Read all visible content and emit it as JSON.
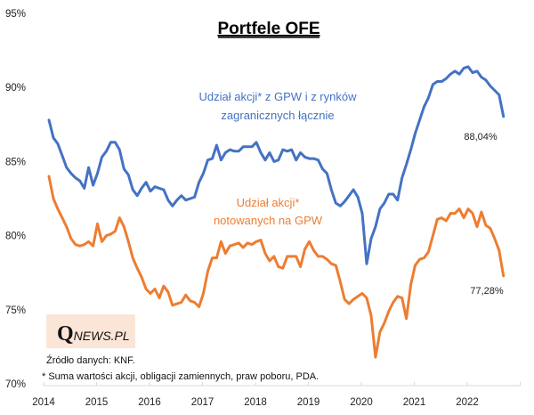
{
  "chart_data": {
    "type": "line",
    "title": "Portfele OFE",
    "xlabel": "",
    "ylabel": "",
    "ylim": [
      70,
      95
    ],
    "y_ticks": [
      "70%",
      "75%",
      "80%",
      "85%",
      "90%",
      "95%"
    ],
    "y_tick_values": [
      70,
      75,
      80,
      85,
      90,
      95
    ],
    "x_ticks": [
      "2014",
      "2015",
      "2016",
      "2017",
      "2018",
      "2019",
      "2020",
      "2021",
      "2022"
    ],
    "x_start": "2014-01",
    "x_end_axis": "2023-01",
    "x_frequency": "monthly",
    "grid": false,
    "series": [
      {
        "name": "Udział akcji* z GPW i z rynków zagranicznych łącznie",
        "color": "#4472C4",
        "annotation_lines": [
          "Udział akcji* z GPW i z rynków",
          "zagranicznych łącznie"
        ],
        "end_label": "88,04%",
        "values": [
          87.8,
          86.6,
          86.2,
          85.4,
          84.6,
          84.2,
          83.9,
          83.7,
          83.2,
          84.6,
          83.4,
          84.2,
          85.3,
          85.7,
          86.3,
          86.3,
          85.8,
          84.5,
          84.1,
          83.1,
          82.7,
          83.2,
          83.6,
          83.0,
          83.3,
          83.2,
          83.1,
          82.4,
          82.0,
          82.4,
          82.7,
          82.4,
          82.5,
          82.6,
          83.6,
          84.2,
          85.1,
          85.2,
          86.1,
          85.1,
          85.6,
          85.8,
          85.7,
          85.7,
          86.0,
          86.0,
          86.0,
          86.3,
          85.6,
          85.1,
          85.6,
          85.0,
          85.1,
          85.8,
          85.7,
          85.8,
          85.1,
          85.6,
          85.3,
          85.2,
          85.2,
          85.1,
          84.5,
          84.2,
          83.1,
          82.2,
          82.0,
          82.3,
          82.7,
          83.1,
          82.6,
          81.5,
          78.1,
          79.8,
          80.6,
          81.8,
          82.2,
          82.8,
          82.8,
          82.4,
          83.9,
          84.8,
          85.8,
          86.9,
          87.8,
          88.7,
          89.3,
          90.2,
          90.4,
          90.4,
          90.6,
          90.9,
          91.1,
          90.9,
          91.3,
          91.4,
          91.0,
          91.1,
          90.7,
          90.5,
          90.1,
          89.8,
          89.5,
          88.04
        ]
      },
      {
        "name": "Udział akcji* notowanych na GPW",
        "color": "#ED7D31",
        "annotation_lines": [
          "Udział akcji*",
          "notowanych  na GPW"
        ],
        "end_label": "77,28%",
        "values": [
          84.0,
          82.5,
          81.8,
          81.2,
          80.6,
          79.8,
          79.4,
          79.3,
          79.4,
          79.6,
          79.3,
          80.8,
          79.6,
          80.0,
          80.1,
          80.3,
          81.2,
          80.6,
          79.6,
          78.5,
          77.8,
          77.2,
          76.4,
          76.1,
          76.4,
          75.8,
          76.6,
          76.2,
          75.3,
          75.4,
          75.5,
          76.0,
          75.6,
          75.5,
          75.2,
          76.1,
          77.6,
          78.5,
          78.5,
          79.6,
          78.8,
          79.3,
          79.4,
          79.5,
          79.2,
          79.5,
          79.4,
          79.6,
          79.7,
          78.8,
          78.3,
          78.6,
          77.9,
          77.8,
          78.6,
          78.6,
          78.6,
          77.9,
          79.1,
          79.6,
          79.0,
          78.6,
          78.6,
          78.4,
          78.1,
          78.0,
          76.9,
          75.7,
          75.4,
          75.7,
          75.9,
          76.1,
          75.8,
          74.6,
          71.8,
          73.5,
          74.1,
          74.9,
          75.5,
          75.9,
          75.8,
          74.4,
          76.7,
          78.0,
          78.4,
          78.5,
          78.9,
          80.0,
          81.1,
          81.2,
          81.0,
          81.5,
          81.5,
          81.8,
          81.2,
          81.8,
          81.5,
          80.6,
          81.6,
          80.7,
          80.5,
          79.8,
          79.0,
          77.28
        ]
      }
    ]
  },
  "logo": {
    "q": "Q",
    "rest": "NEWS.PL",
    "background": "#FBE5D6"
  },
  "notes": {
    "source": "Źródło danych: KNF.",
    "footnote": "* Suma wartości akcji, obligacji zamiennych, praw poboru, PDA."
  }
}
